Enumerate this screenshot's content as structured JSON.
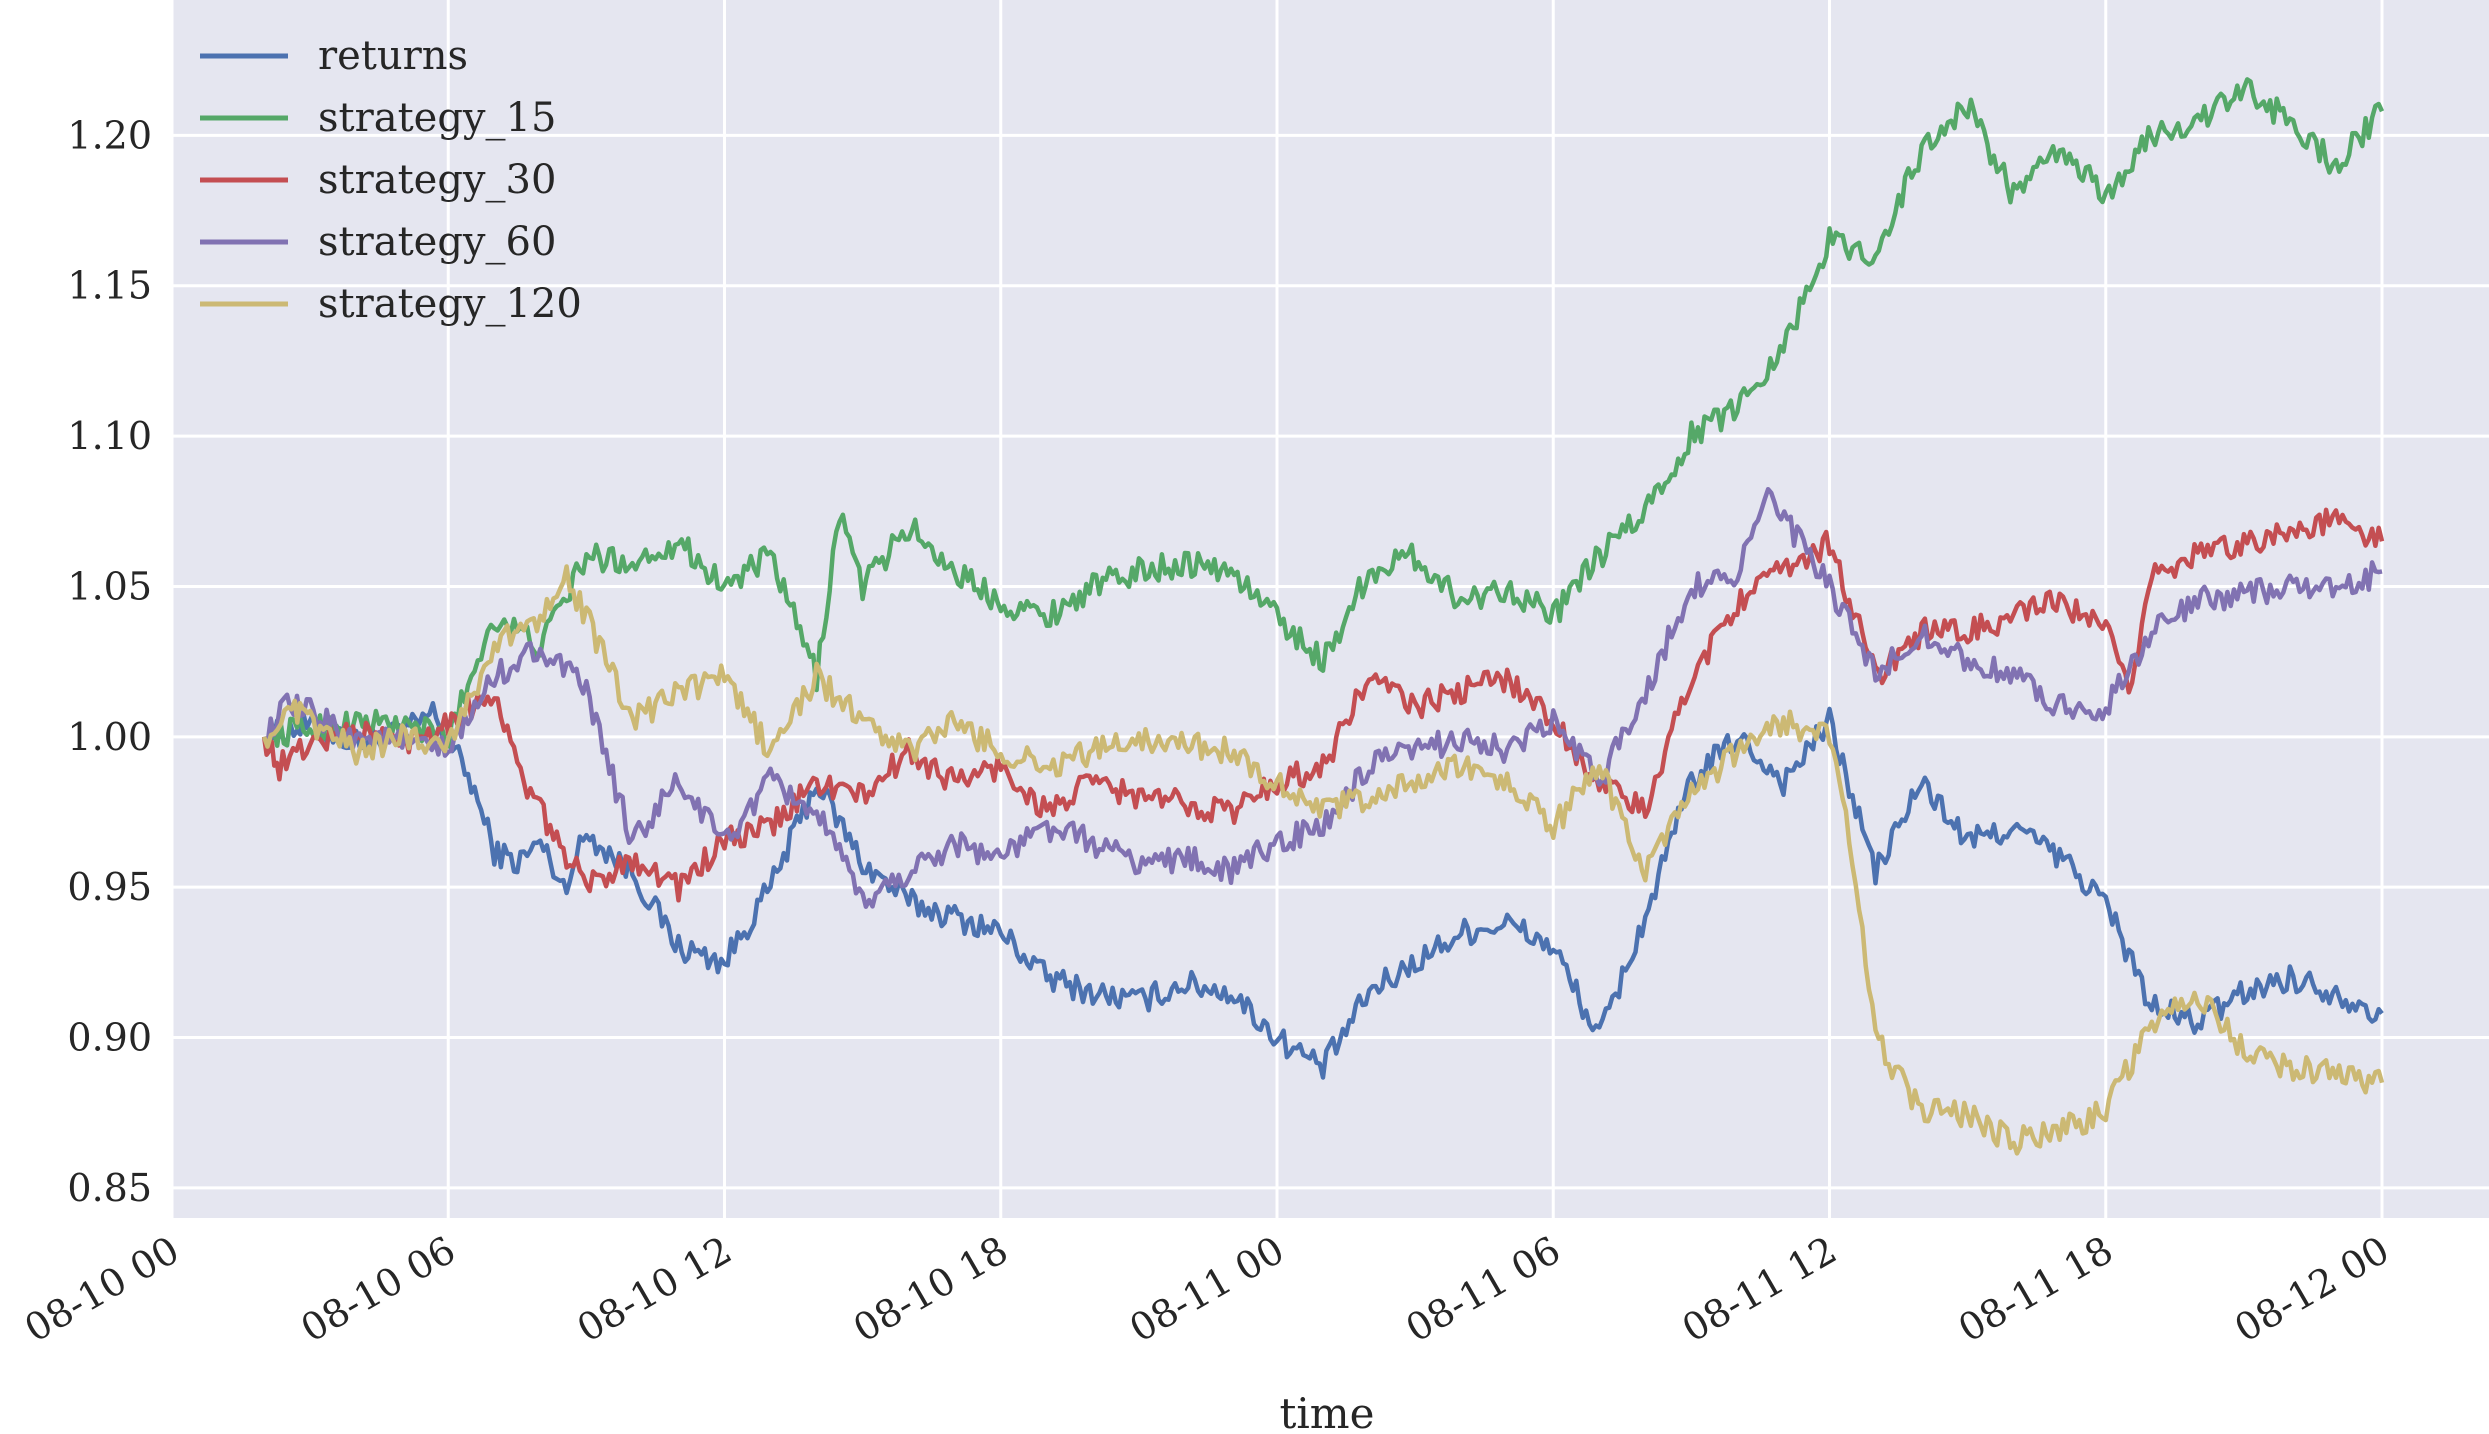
{
  "chart_data": {
    "type": "line",
    "title": "",
    "xlabel": "time",
    "ylabel": "",
    "x_start_label": "08-10 00",
    "x_ticks": [
      "08-10 00",
      "08-10 06",
      "08-10 12",
      "08-10 18",
      "08-11 00",
      "08-11 06",
      "08-11 12",
      "08-11 18",
      "08-12 00"
    ],
    "y_ticks": [
      "0.85",
      "0.90",
      "0.95",
      "1.00",
      "1.05",
      "1.10",
      "1.15",
      "1.20"
    ],
    "ylim": [
      0.84,
      1.245
    ],
    "grid": true,
    "legend_position": "top-left",
    "background_color": "#e5e6f0",
    "grid_color": "#ffffff",
    "series": [
      {
        "name": "returns",
        "color": "#4c72b0",
        "values": [
          [
            "08-10 02:00",
            1.0
          ],
          [
            "08-10 03:00",
            1.004
          ],
          [
            "08-10 04:00",
            0.998
          ],
          [
            "08-10 05:00",
            1.001
          ],
          [
            "08-10 05:40",
            1.008
          ],
          [
            "08-10 06:30",
            0.985
          ],
          [
            "08-10 07:00",
            0.962
          ],
          [
            "08-10 07:30",
            0.958
          ],
          [
            "08-10 08:00",
            0.965
          ],
          [
            "08-10 08:30",
            0.95
          ],
          [
            "08-10 09:00",
            0.968
          ],
          [
            "08-10 10:00",
            0.955
          ],
          [
            "08-10 11:00",
            0.93
          ],
          [
            "08-10 12:00",
            0.925
          ],
          [
            "08-10 13:00",
            0.95
          ],
          [
            "08-10 14:00",
            0.985
          ],
          [
            "08-10 15:00",
            0.958
          ],
          [
            "08-10 16:00",
            0.945
          ],
          [
            "08-10 17:00",
            0.94
          ],
          [
            "08-10 18:00",
            0.935
          ],
          [
            "08-10 19:00",
            0.92
          ],
          [
            "08-10 20:00",
            0.915
          ],
          [
            "08-10 21:00",
            0.912
          ],
          [
            "08-10 22:00",
            0.918
          ],
          [
            "08-10 23:00",
            0.915
          ],
          [
            "08-11 00:00",
            0.9
          ],
          [
            "08-11 01:00",
            0.89
          ],
          [
            "08-11 02:00",
            0.915
          ],
          [
            "08-11 03:00",
            0.925
          ],
          [
            "08-11 04:00",
            0.935
          ],
          [
            "08-11 05:00",
            0.938
          ],
          [
            "08-11 06:00",
            0.93
          ],
          [
            "08-11 07:00",
            0.9
          ],
          [
            "08-11 08:00",
            0.94
          ],
          [
            "08-11 09:00",
            0.985
          ],
          [
            "08-11 10:00",
            1.0
          ],
          [
            "08-11 11:00",
            0.985
          ],
          [
            "08-11 12:00",
            1.005
          ],
          [
            "08-11 13:00",
            0.955
          ],
          [
            "08-11 14:00",
            0.985
          ],
          [
            "08-11 15:00",
            0.965
          ],
          [
            "08-11 16:00",
            0.97
          ],
          [
            "08-11 17:00",
            0.96
          ],
          [
            "08-11 18:00",
            0.945
          ],
          [
            "08-11 19:00",
            0.91
          ],
          [
            "08-11 20:00",
            0.905
          ],
          [
            "08-11 21:00",
            0.915
          ],
          [
            "08-11 22:00",
            0.92
          ],
          [
            "08-11 23:00",
            0.915
          ],
          [
            "08-12 00:00",
            0.908
          ]
        ]
      },
      {
        "name": "strategy_15",
        "color": "#55a868",
        "values": [
          [
            "08-10 02:00",
            1.0
          ],
          [
            "08-10 03:00",
            1.003
          ],
          [
            "08-10 04:00",
            1.005
          ],
          [
            "08-10 05:00",
            1.004
          ],
          [
            "08-10 06:00",
            1.0
          ],
          [
            "08-10 06:30",
            1.02
          ],
          [
            "08-10 07:00",
            1.04
          ],
          [
            "08-10 08:00",
            1.03
          ],
          [
            "08-10 09:00",
            1.06
          ],
          [
            "08-10 10:00",
            1.058
          ],
          [
            "08-10 11:00",
            1.065
          ],
          [
            "08-10 12:00",
            1.05
          ],
          [
            "08-10 13:00",
            1.06
          ],
          [
            "08-10 14:00",
            1.02
          ],
          [
            "08-10 14:30",
            1.075
          ],
          [
            "08-10 15:00",
            1.05
          ],
          [
            "08-10 16:00",
            1.07
          ],
          [
            "08-10 17:00",
            1.055
          ],
          [
            "08-10 18:00",
            1.045
          ],
          [
            "08-10 19:00",
            1.04
          ],
          [
            "08-10 20:00",
            1.05
          ],
          [
            "08-10 21:00",
            1.055
          ],
          [
            "08-10 22:00",
            1.058
          ],
          [
            "08-10 23:00",
            1.055
          ],
          [
            "08-11 00:00",
            1.04
          ],
          [
            "08-11 01:00",
            1.025
          ],
          [
            "08-11 02:00",
            1.055
          ],
          [
            "08-11 03:00",
            1.06
          ],
          [
            "08-11 04:00",
            1.045
          ],
          [
            "08-11 05:00",
            1.05
          ],
          [
            "08-11 06:00",
            1.04
          ],
          [
            "08-11 07:00",
            1.06
          ],
          [
            "08-11 08:00",
            1.075
          ],
          [
            "08-11 09:00",
            1.1
          ],
          [
            "08-11 10:00",
            1.11
          ],
          [
            "08-11 11:00",
            1.13
          ],
          [
            "08-11 12:00",
            1.165
          ],
          [
            "08-11 13:00",
            1.16
          ],
          [
            "08-11 14:00",
            1.195
          ],
          [
            "08-11 15:00",
            1.21
          ],
          [
            "08-11 16:00",
            1.18
          ],
          [
            "08-11 17:00",
            1.195
          ],
          [
            "08-11 18:00",
            1.18
          ],
          [
            "08-11 19:00",
            1.2
          ],
          [
            "08-11 20:00",
            1.205
          ],
          [
            "08-11 21:00",
            1.215
          ],
          [
            "08-11 22:00",
            1.205
          ],
          [
            "08-11 23:00",
            1.19
          ],
          [
            "08-12 00:00",
            1.208
          ]
        ]
      },
      {
        "name": "strategy_30",
        "color": "#c44e52",
        "values": [
          [
            "08-10 02:00",
            1.0
          ],
          [
            "08-10 02:20",
            0.99
          ],
          [
            "08-10 03:00",
            0.998
          ],
          [
            "08-10 04:00",
            1.002
          ],
          [
            "08-10 05:00",
            0.998
          ],
          [
            "08-10 06:00",
            1.005
          ],
          [
            "08-10 07:00",
            1.015
          ],
          [
            "08-10 07:30",
            0.99
          ],
          [
            "08-10 08:00",
            0.975
          ],
          [
            "08-10 09:00",
            0.95
          ],
          [
            "08-10 10:00",
            0.96
          ],
          [
            "08-10 11:00",
            0.95
          ],
          [
            "08-10 12:00",
            0.965
          ],
          [
            "08-10 13:00",
            0.97
          ],
          [
            "08-10 14:00",
            0.985
          ],
          [
            "08-10 15:00",
            0.98
          ],
          [
            "08-10 16:00",
            0.995
          ],
          [
            "08-10 17:00",
            0.985
          ],
          [
            "08-10 18:00",
            0.99
          ],
          [
            "08-10 19:00",
            0.975
          ],
          [
            "08-10 20:00",
            0.985
          ],
          [
            "08-10 21:00",
            0.98
          ],
          [
            "08-10 22:00",
            0.978
          ],
          [
            "08-10 23:00",
            0.975
          ],
          [
            "08-11 00:00",
            0.985
          ],
          [
            "08-11 01:00",
            0.99
          ],
          [
            "08-11 02:00",
            1.02
          ],
          [
            "08-11 03:00",
            1.01
          ],
          [
            "08-11 04:00",
            1.015
          ],
          [
            "08-11 05:00",
            1.02
          ],
          [
            "08-11 06:00",
            1.005
          ],
          [
            "08-11 07:00",
            0.985
          ],
          [
            "08-11 08:00",
            0.975
          ],
          [
            "08-11 09:00",
            1.02
          ],
          [
            "08-11 10:00",
            1.045
          ],
          [
            "08-11 11:00",
            1.055
          ],
          [
            "08-11 12:00",
            1.065
          ],
          [
            "08-11 13:00",
            1.02
          ],
          [
            "08-11 14:00",
            1.035
          ],
          [
            "08-11 15:00",
            1.035
          ],
          [
            "08-11 16:00",
            1.04
          ],
          [
            "08-11 17:00",
            1.045
          ],
          [
            "08-11 18:00",
            1.035
          ],
          [
            "08-11 18:30",
            1.015
          ],
          [
            "08-11 19:00",
            1.055
          ],
          [
            "08-11 20:00",
            1.06
          ],
          [
            "08-11 21:00",
            1.065
          ],
          [
            "08-11 22:00",
            1.068
          ],
          [
            "08-11 23:00",
            1.072
          ],
          [
            "08-12 00:00",
            1.065
          ]
        ]
      },
      {
        "name": "strategy_60",
        "color": "#8172b2",
        "values": [
          [
            "08-10 02:00",
            1.0
          ],
          [
            "08-10 02:30",
            1.01
          ],
          [
            "08-10 03:00",
            1.008
          ],
          [
            "08-10 04:00",
            1.0
          ],
          [
            "08-10 05:00",
            0.998
          ],
          [
            "08-10 06:00",
            0.995
          ],
          [
            "08-10 07:00",
            1.02
          ],
          [
            "08-10 08:00",
            1.03
          ],
          [
            "08-10 09:00",
            1.015
          ],
          [
            "08-10 10:00",
            0.965
          ],
          [
            "08-10 11:00",
            0.985
          ],
          [
            "08-10 12:00",
            0.965
          ],
          [
            "08-10 13:00",
            0.985
          ],
          [
            "08-10 14:00",
            0.975
          ],
          [
            "08-10 15:00",
            0.945
          ],
          [
            "08-10 16:00",
            0.955
          ],
          [
            "08-10 17:00",
            0.965
          ],
          [
            "08-10 18:00",
            0.96
          ],
          [
            "08-10 19:00",
            0.97
          ],
          [
            "08-10 20:00",
            0.965
          ],
          [
            "08-10 21:00",
            0.958
          ],
          [
            "08-10 22:00",
            0.96
          ],
          [
            "08-10 23:00",
            0.955
          ],
          [
            "08-11 00:00",
            0.965
          ],
          [
            "08-11 01:00",
            0.97
          ],
          [
            "08-11 02:00",
            0.99
          ],
          [
            "08-11 03:00",
            0.995
          ],
          [
            "08-11 04:00",
            1.0
          ],
          [
            "08-11 05:00",
            0.995
          ],
          [
            "08-11 06:00",
            1.005
          ],
          [
            "08-11 07:00",
            0.985
          ],
          [
            "08-11 08:00",
            1.015
          ],
          [
            "08-11 09:00",
            1.05
          ],
          [
            "08-11 10:00",
            1.055
          ],
          [
            "08-11 10:40",
            1.08
          ],
          [
            "08-11 12:00",
            1.05
          ],
          [
            "08-11 13:00",
            1.02
          ],
          [
            "08-11 14:00",
            1.035
          ],
          [
            "08-11 15:00",
            1.025
          ],
          [
            "08-11 16:00",
            1.02
          ],
          [
            "08-11 17:00",
            1.01
          ],
          [
            "08-11 18:00",
            1.01
          ],
          [
            "08-11 19:00",
            1.035
          ],
          [
            "08-11 20:00",
            1.045
          ],
          [
            "08-11 21:00",
            1.048
          ],
          [
            "08-11 22:00",
            1.05
          ],
          [
            "08-11 23:00",
            1.048
          ],
          [
            "08-12 00:00",
            1.055
          ]
        ]
      },
      {
        "name": "strategy_120",
        "color": "#ccb974",
        "values": [
          [
            "08-10 02:00",
            1.0
          ],
          [
            "08-10 02:40",
            1.008
          ],
          [
            "08-10 03:00",
            1.005
          ],
          [
            "08-10 04:00",
            0.995
          ],
          [
            "08-10 05:00",
            1.0
          ],
          [
            "08-10 06:00",
            0.998
          ],
          [
            "08-10 07:00",
            1.03
          ],
          [
            "08-10 08:00",
            1.04
          ],
          [
            "08-10 08:30",
            1.055
          ],
          [
            "08-10 09:00",
            1.04
          ],
          [
            "08-10 10:00",
            1.005
          ],
          [
            "08-10 11:00",
            1.015
          ],
          [
            "08-10 12:00",
            1.02
          ],
          [
            "08-10 13:00",
            0.995
          ],
          [
            "08-10 14:00",
            1.02
          ],
          [
            "08-10 15:00",
            1.005
          ],
          [
            "08-10 16:00",
            0.995
          ],
          [
            "08-10 17:00",
            1.005
          ],
          [
            "08-10 18:00",
            0.995
          ],
          [
            "08-10 19:00",
            0.99
          ],
          [
            "08-10 20:00",
            0.995
          ],
          [
            "08-10 21:00",
            1.0
          ],
          [
            "08-10 22:00",
            0.998
          ],
          [
            "08-10 23:00",
            0.995
          ],
          [
            "08-11 00:00",
            0.985
          ],
          [
            "08-11 01:00",
            0.975
          ],
          [
            "08-11 02:00",
            0.98
          ],
          [
            "08-11 03:00",
            0.985
          ],
          [
            "08-11 04:00",
            0.99
          ],
          [
            "08-11 05:00",
            0.985
          ],
          [
            "08-11 06:00",
            0.97
          ],
          [
            "08-11 07:00",
            0.99
          ],
          [
            "08-11 08:00",
            0.955
          ],
          [
            "08-11 09:00",
            0.98
          ],
          [
            "08-11 10:00",
            0.995
          ],
          [
            "08-11 11:00",
            1.005
          ],
          [
            "08-11 12:00",
            1.0
          ],
          [
            "08-11 12:30",
            0.96
          ],
          [
            "08-11 13:00",
            0.9
          ],
          [
            "08-11 14:00",
            0.875
          ],
          [
            "08-11 15:00",
            0.875
          ],
          [
            "08-11 16:00",
            0.865
          ],
          [
            "08-11 17:00",
            0.87
          ],
          [
            "08-11 18:00",
            0.875
          ],
          [
            "08-11 19:00",
            0.905
          ],
          [
            "08-11 20:00",
            0.915
          ],
          [
            "08-11 21:00",
            0.895
          ],
          [
            "08-11 22:00",
            0.89
          ],
          [
            "08-11 23:00",
            0.888
          ],
          [
            "08-12 00:00",
            0.885
          ]
        ]
      }
    ]
  }
}
